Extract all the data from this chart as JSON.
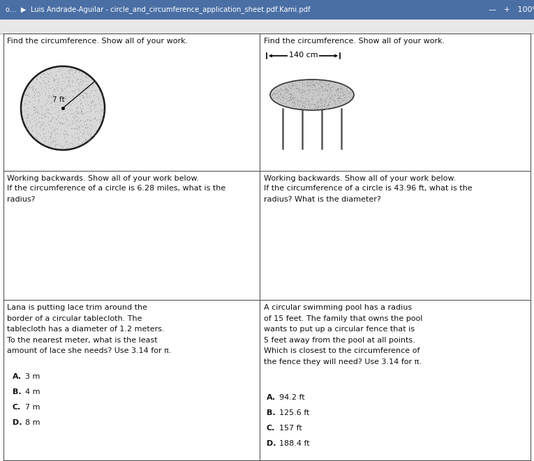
{
  "bg_color": "#ffffff",
  "browser_bar_color": "#4a6fa5",
  "browser_text": "o...  ▶  Luis Andrade-Aguilar - circle_and_circumference_application_sheet.pdf.Kami.pdf",
  "browser_right": "—   +   100%",
  "cell1_title": "Find the circumference. Show all of your work.",
  "cell2_title": "Find the circumference. Show all of your work.",
  "cell1_measure": "7 ft",
  "cell2_measure": "140 cm",
  "cell3_title": "Working backwards. Show all of your work below.",
  "cell3_body": "If the circumference of a circle is 6.28 miles, what is the\nradius?",
  "cell4_title": "Working backwards. Show all of your work below.",
  "cell4_body": "If the circumference of a circle is 43.96 ft, what is the\nradius? What is the diameter?",
  "cell5_body": "Lana is putting lace trim around the\nborder of a circular tablecloth. The\ntablecloth has a diameter of 1.2 meters.\nTo the nearest meter, what is the least\namount of lace she needs? Use 3.14 for π.",
  "cell5_choices": [
    [
      "A.",
      "3 m"
    ],
    [
      "B.",
      "4 m"
    ],
    [
      "C.",
      "7 m"
    ],
    [
      "D.",
      "8 m"
    ]
  ],
  "cell6_body": "A circular swimming pool has a radius\nof 15 feet. The family that owns the pool\nwants to put up a circular fence that is\n5 feet away from the pool at all points.\nWhich is closest to the circumference of\nthe fence they will need? Use 3.14 for π.",
  "cell6_choices": [
    [
      "A.",
      "94.2 ft"
    ],
    [
      "B.",
      "125.6 ft"
    ],
    [
      "C.",
      "157 ft"
    ],
    [
      "D.",
      "188.4 ft"
    ]
  ],
  "grid_color": "#555555",
  "text_color": "#111111",
  "light_gray": "#d0d0d0",
  "mid_gray": "#a0a0a0"
}
